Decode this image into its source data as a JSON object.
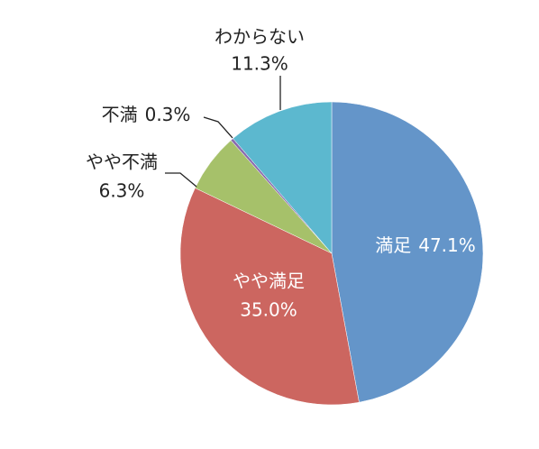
{
  "chart_data": {
    "type": "pie",
    "categories": [
      "満足",
      "やや満足",
      "やや不満",
      "不満",
      "わからない"
    ],
    "values": [
      47.1,
      35.0,
      6.3,
      0.3,
      11.3
    ],
    "value_labels": [
      "47.1%",
      "35.0%",
      "6.3%",
      "0.3%",
      "11.3%"
    ],
    "colors": [
      "#6495c9",
      "#cc6660",
      "#a6c16a",
      "#8a6bae",
      "#5cb8cf"
    ]
  }
}
